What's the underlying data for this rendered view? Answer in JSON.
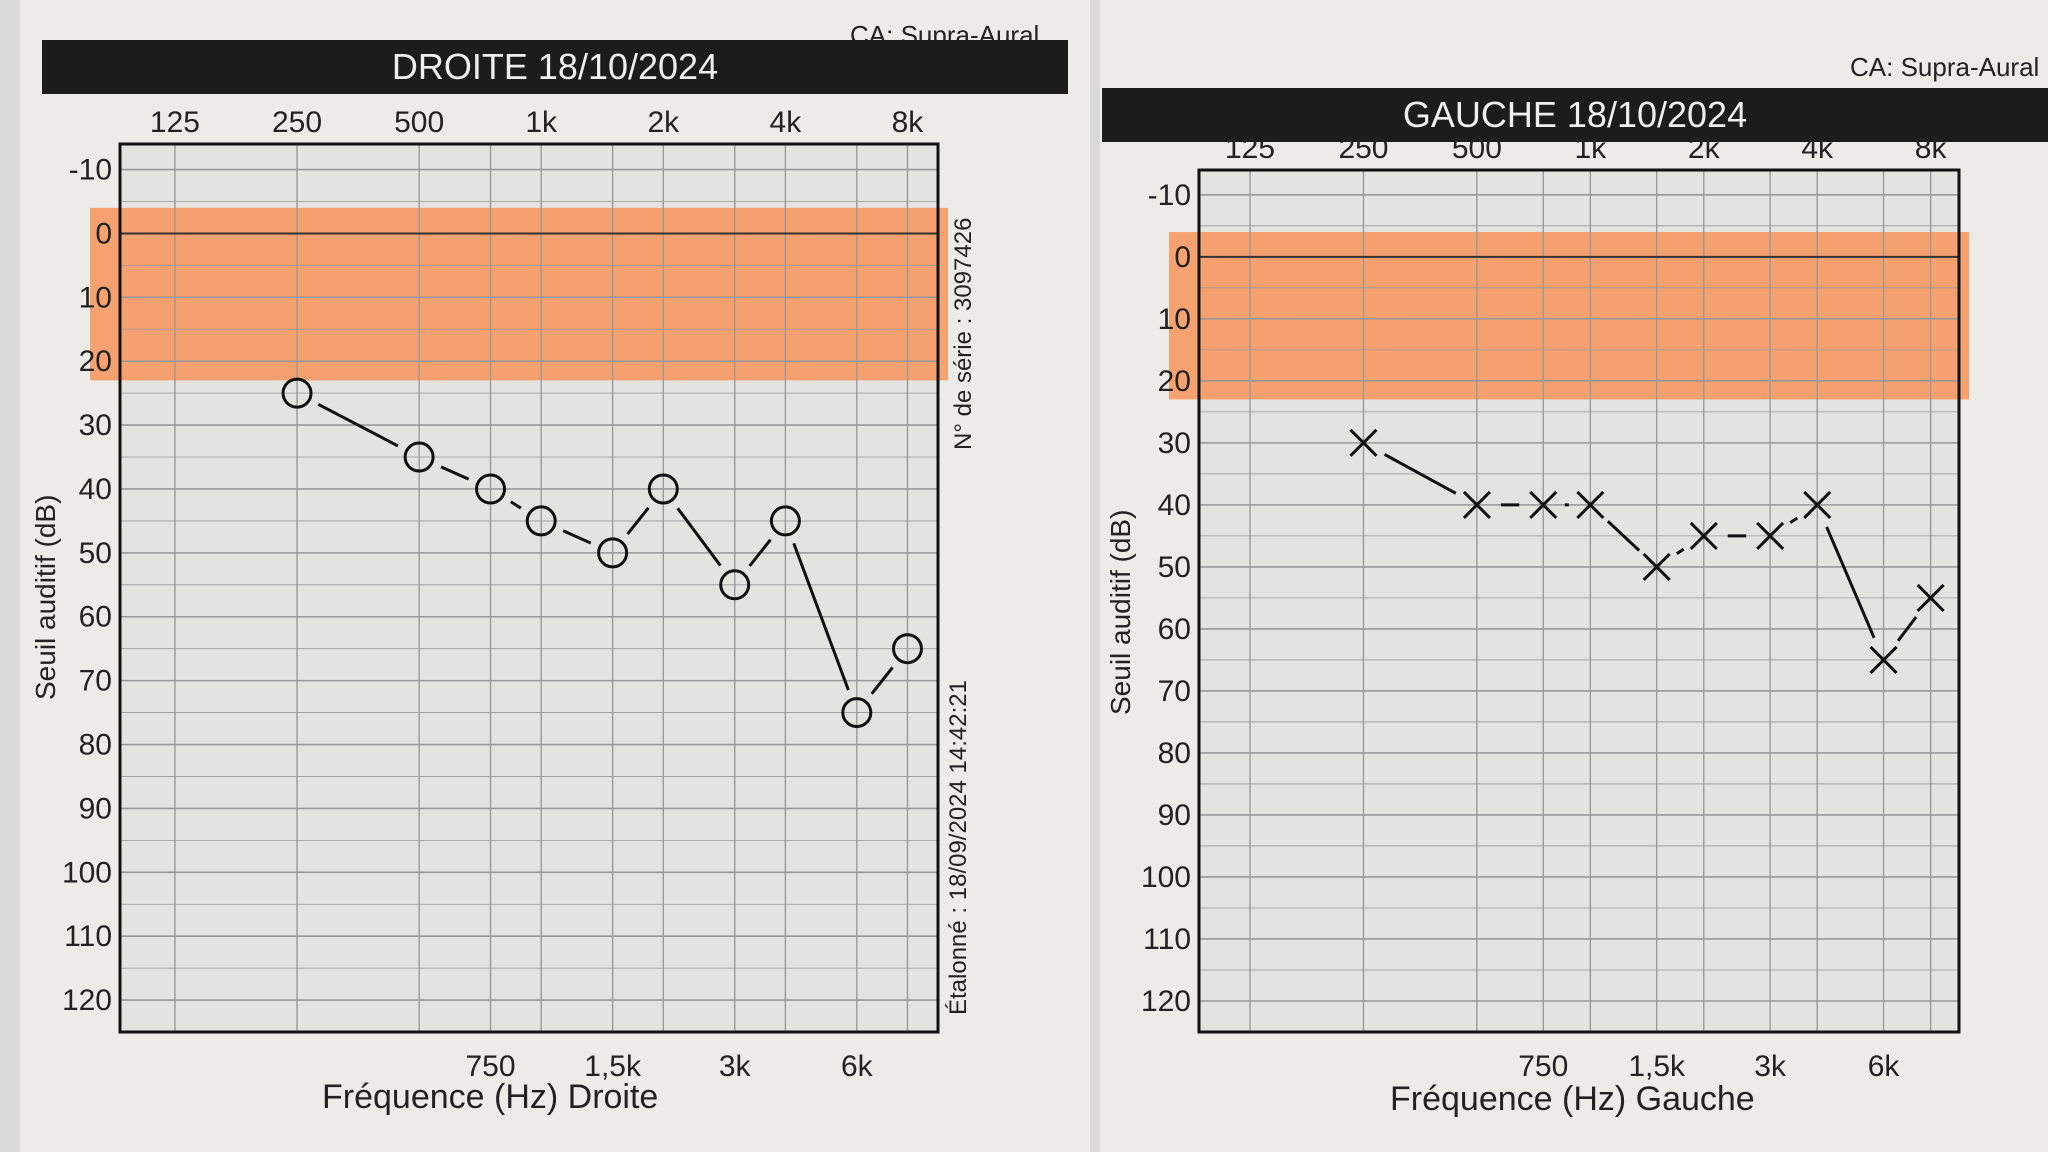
{
  "chart_data": [
    {
      "type": "line",
      "title": "DROITE 18/10/2024",
      "header": "CA: Supra-Aural",
      "xlabel": "Fréquence (Hz) Droite",
      "ylabel": "Seuil auditif (dB)",
      "top_ticks": [
        "125",
        "250",
        "500",
        "1k",
        "2k",
        "4k",
        "8k"
      ],
      "bottom_ticks": [
        "750",
        "1,5k",
        "3k",
        "6k"
      ],
      "y_ticks": [
        "-10",
        "0",
        "10",
        "20",
        "30",
        "40",
        "50",
        "60",
        "70",
        "80",
        "90",
        "100",
        "110",
        "120"
      ],
      "x": [
        250,
        500,
        750,
        1000,
        1500,
        2000,
        3000,
        4000,
        6000,
        8000
      ],
      "values": [
        25,
        35,
        40,
        45,
        50,
        40,
        55,
        45,
        75,
        65
      ],
      "marker": "circle",
      "ylim": [
        -10,
        120
      ],
      "highlight_band": [
        0,
        20
      ],
      "band_color": "#f7955a",
      "serial": "N° de série : 3097426",
      "calibrated": "Étalonné : 18/09/2024 14:42:21"
    },
    {
      "type": "line",
      "title": "GAUCHE 18/10/2024",
      "header": "CA: Supra-Aural",
      "xlabel": "Fréquence (Hz) Gauche",
      "ylabel": "Seuil auditif (dB)",
      "top_ticks": [
        "125",
        "250",
        "500",
        "1k",
        "2k",
        "4k",
        "8k"
      ],
      "bottom_ticks": [
        "750",
        "1,5k",
        "3k",
        "6k"
      ],
      "y_ticks": [
        "-10",
        "0",
        "10",
        "20",
        "30",
        "40",
        "50",
        "60",
        "70",
        "80",
        "90",
        "100",
        "110",
        "120"
      ],
      "x": [
        250,
        500,
        750,
        1000,
        1500,
        2000,
        3000,
        4000,
        6000,
        8000
      ],
      "values": [
        30,
        40,
        40,
        40,
        50,
        45,
        45,
        40,
        65,
        55
      ],
      "marker": "cross",
      "ylim": [
        -10,
        120
      ],
      "highlight_band": [
        0,
        20
      ],
      "band_color": "#f7955a"
    }
  ]
}
